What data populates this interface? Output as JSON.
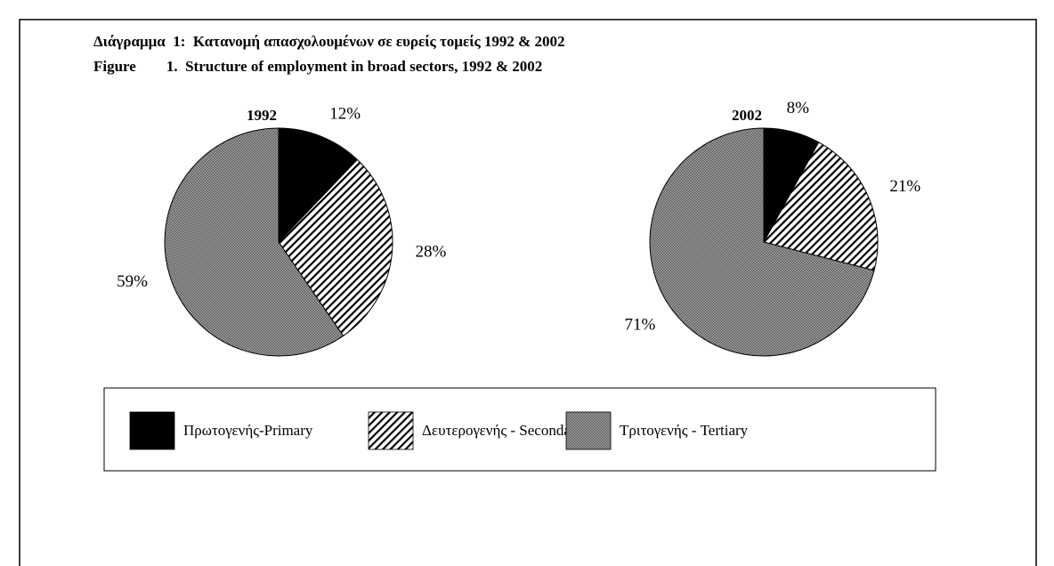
{
  "titles": [
    "Διάγραμμα  1:  Κατανομή απασχολουμένων σε ευρείς τομείς 1992 & 2002",
    "Figure        1.  Structure of employment in broad sectors, 1992 & 2002"
  ],
  "chart_data": [
    {
      "type": "pie",
      "title": "1992",
      "categories": [
        "Πρωτογενής-Primary",
        "Δευτερογενής - Secondary",
        "Τριτογενής - Tertiary"
      ],
      "values": [
        12,
        28,
        59
      ],
      "value_labels": [
        "12%",
        "28%",
        "59%"
      ],
      "patterns": [
        "solid",
        "diagonal",
        "checker"
      ],
      "legend": "bottom"
    },
    {
      "type": "pie",
      "title": "2002",
      "categories": [
        "Πρωτογενής-Primary",
        "Δευτερογενής - Secondary",
        "Τριτογενής - Tertiary"
      ],
      "values": [
        8,
        21,
        71
      ],
      "value_labels": [
        "8%",
        "21%",
        "71%"
      ],
      "patterns": [
        "solid",
        "diagonal",
        "checker"
      ]
    }
  ]
}
